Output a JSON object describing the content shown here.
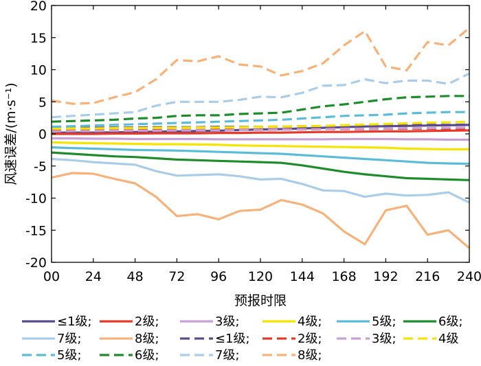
{
  "chart_data": {
    "type": "line",
    "xlabel": "预报时限",
    "ylabel": "风速误差/(m·s⁻¹)",
    "xlim": [
      0,
      240
    ],
    "ylim": [
      -20,
      20
    ],
    "x_ticks": [
      "00",
      "24",
      "48",
      "72",
      "96",
      "120",
      "144",
      "168",
      "192",
      "216",
      "240"
    ],
    "y_ticks": [
      "-20",
      "-15",
      "-10",
      "-5",
      "0",
      "5",
      "10",
      "15",
      "20"
    ],
    "x": [
      0,
      12,
      24,
      36,
      48,
      60,
      72,
      84,
      96,
      108,
      120,
      132,
      144,
      156,
      168,
      180,
      192,
      204,
      216,
      228,
      240
    ],
    "series": [
      {
        "name": "≤1级;",
        "color": "#5b4b8a",
        "dash": false,
        "values": [
          0.2,
          0.2,
          0.2,
          0.25,
          0.3,
          0.35,
          0.4,
          0.45,
          0.5,
          0.6,
          0.7,
          0.75,
          0.85,
          0.95,
          1.05,
          1.15,
          1.2,
          1.25,
          1.3,
          1.35,
          1.4
        ]
      },
      {
        "name": "2级;",
        "color": "#e53a2a",
        "dash": false,
        "values": [
          0.0,
          0.0,
          0.0,
          0.05,
          0.05,
          0.1,
          0.1,
          0.1,
          0.15,
          0.15,
          0.2,
          0.2,
          0.25,
          0.3,
          0.3,
          0.35,
          0.4,
          0.4,
          0.45,
          0.5,
          0.55
        ]
      },
      {
        "name": "3级;",
        "color": "#c9a0d4",
        "dash": false,
        "values": [
          -0.7,
          -0.7,
          -0.75,
          -0.75,
          -0.8,
          -0.8,
          -0.8,
          -0.8,
          -0.85,
          -0.85,
          -0.85,
          -0.85,
          -0.85,
          -0.85,
          -0.8,
          -0.8,
          -0.8,
          -0.85,
          -0.85,
          -0.9,
          -0.9
        ]
      },
      {
        "name": "4级",
        "color": "#f5e400",
        "dash": false,
        "values": [
          -1.3,
          -1.4,
          -1.45,
          -1.5,
          -1.55,
          -1.6,
          -1.6,
          -1.65,
          -1.7,
          -1.8,
          -1.85,
          -1.9,
          -1.95,
          -2.0,
          -2.05,
          -2.1,
          -2.15,
          -2.3,
          -2.35,
          -2.4,
          -2.4
        ]
      },
      {
        "name": "5级;",
        "color": "#5bbcd8",
        "dash": false,
        "values": [
          -2.1,
          -2.2,
          -2.3,
          -2.4,
          -2.5,
          -2.55,
          -2.6,
          -2.7,
          -2.8,
          -2.9,
          -3.0,
          -3.1,
          -3.3,
          -3.5,
          -3.7,
          -3.9,
          -4.1,
          -4.3,
          -4.5,
          -4.6,
          -4.65
        ]
      },
      {
        "name": "6级",
        "color": "#1f8c2c",
        "dash": false,
        "values": [
          -2.9,
          -3.1,
          -3.3,
          -3.5,
          -3.6,
          -3.8,
          -4.0,
          -4.1,
          -4.2,
          -4.3,
          -4.4,
          -4.5,
          -4.9,
          -5.4,
          -5.9,
          -6.3,
          -6.6,
          -6.9,
          -7.0,
          -7.1,
          -7.2
        ]
      },
      {
        "name": "7级;",
        "color": "#a9cde9",
        "dash": false,
        "values": [
          -3.9,
          -4.1,
          -4.4,
          -4.6,
          -4.8,
          -5.8,
          -6.5,
          -6.4,
          -6.3,
          -6.6,
          -7.1,
          -7.0,
          -7.8,
          -8.8,
          -8.9,
          -9.8,
          -9.3,
          -9.6,
          -9.5,
          -9.1,
          -10.7
        ]
      },
      {
        "name": "8级;",
        "color": "#f7b27a",
        "dash": false,
        "values": [
          -6.8,
          -6.1,
          -6.2,
          -7.0,
          -7.7,
          -9.8,
          -12.8,
          -12.5,
          -13.3,
          -12.0,
          -11.8,
          -10.3,
          -11.0,
          -12.4,
          -15.2,
          -17.2,
          -11.9,
          -11.2,
          -15.7,
          -15.0,
          -17.8
        ]
      },
      {
        "name": "≤1级;",
        "color": "#5b4b8a",
        "dash": true,
        "values": [
          0.9,
          0.95,
          0.95,
          1.0,
          1.0,
          1.05,
          1.05,
          1.05,
          1.1,
          1.1,
          1.1,
          1.15,
          1.2,
          1.2,
          1.25,
          1.3,
          1.35,
          1.35,
          1.4,
          1.4,
          1.45
        ]
      },
      {
        "name": "2级;",
        "color": "#e53a2a",
        "dash": true,
        "values": [
          0.5,
          0.55,
          0.55,
          0.55,
          0.6,
          0.6,
          0.6,
          0.6,
          0.65,
          0.65,
          0.65,
          0.7,
          0.7,
          0.75,
          0.75,
          0.75,
          0.8,
          0.8,
          0.8,
          0.8,
          0.85
        ]
      },
      {
        "name": "3级;",
        "color": "#c9a0d4",
        "dash": true,
        "values": [
          0.4,
          0.45,
          0.45,
          0.5,
          0.5,
          0.5,
          0.55,
          0.55,
          0.55,
          0.6,
          0.6,
          0.65,
          0.7,
          0.75,
          0.8,
          0.8,
          0.85,
          0.9,
          0.9,
          0.95,
          1.0
        ]
      },
      {
        "name": "4级",
        "color": "#f5e400",
        "dash": true,
        "values": [
          0.8,
          0.85,
          0.85,
          0.9,
          0.9,
          0.95,
          0.95,
          1.0,
          1.0,
          1.05,
          1.1,
          1.15,
          1.2,
          1.25,
          1.35,
          1.45,
          1.55,
          1.65,
          1.75,
          1.8,
          1.9
        ]
      },
      {
        "name": "5级;",
        "color": "#5bbcd8",
        "dash": true,
        "values": [
          1.1,
          1.2,
          1.3,
          1.4,
          1.5,
          1.6,
          1.7,
          1.8,
          1.9,
          2.0,
          2.1,
          2.2,
          2.4,
          2.6,
          2.8,
          2.9,
          3.0,
          3.2,
          3.3,
          3.4,
          3.4
        ]
      },
      {
        "name": "6级;",
        "color": "#1f8c2c",
        "dash": true,
        "values": [
          1.9,
          2.0,
          2.1,
          2.2,
          2.4,
          2.5,
          2.8,
          2.9,
          2.9,
          3.1,
          3.2,
          3.3,
          3.8,
          4.3,
          4.6,
          5.0,
          5.4,
          5.7,
          5.8,
          5.9,
          5.9
        ]
      },
      {
        "name": "7级;",
        "color": "#a9cde9",
        "dash": true,
        "values": [
          2.6,
          2.8,
          3.0,
          3.2,
          3.4,
          4.4,
          5.0,
          5.0,
          5.0,
          5.3,
          5.8,
          5.7,
          6.4,
          7.5,
          7.6,
          8.5,
          7.9,
          8.3,
          8.3,
          7.8,
          9.4
        ]
      },
      {
        "name": "8级;",
        "color": "#f7b27a",
        "dash": true,
        "values": [
          5.2,
          4.7,
          4.8,
          5.7,
          6.5,
          8.5,
          11.5,
          11.3,
          12.1,
          10.8,
          10.5,
          9.1,
          9.8,
          11.0,
          13.8,
          16.0,
          10.5,
          9.9,
          14.3,
          13.8,
          16.5
        ]
      }
    ],
    "legend": {
      "placement": "bottom",
      "rows": [
        [
          "≤1级;",
          "2级;",
          "3级;",
          "4级;",
          "5级;",
          "6级;"
        ],
        [
          "7级;",
          "8级;",
          "≤1级;",
          "2级;",
          "3级;",
          "4级"
        ],
        [
          "5级;",
          "6级;",
          "7级;",
          "8级;"
        ]
      ]
    },
    "grid": false
  }
}
